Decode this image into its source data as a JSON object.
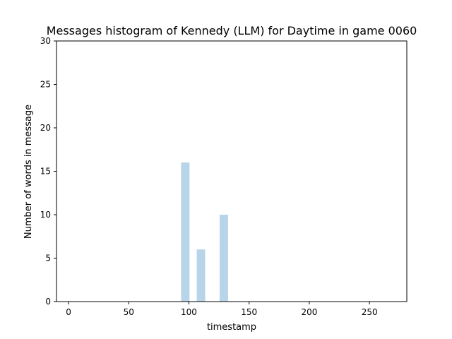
{
  "chart_data": {
    "type": "bar",
    "title": "Messages histogram of Kennedy (LLM) for Daytime in game 0060",
    "xlabel": "timestamp",
    "ylabel": "Number of words in message",
    "xlim": [
      -10,
      281
    ],
    "ylim": [
      0,
      30
    ],
    "xticks": [
      0,
      50,
      100,
      150,
      200,
      250
    ],
    "yticks": [
      0,
      5,
      10,
      15,
      20,
      25,
      30
    ],
    "grid": false,
    "bar_color": "#b8d4e8",
    "bars": [
      {
        "x": 97,
        "value": 16
      },
      {
        "x": 110,
        "value": 6
      },
      {
        "x": 129,
        "value": 10
      }
    ],
    "bar_width": 7
  }
}
